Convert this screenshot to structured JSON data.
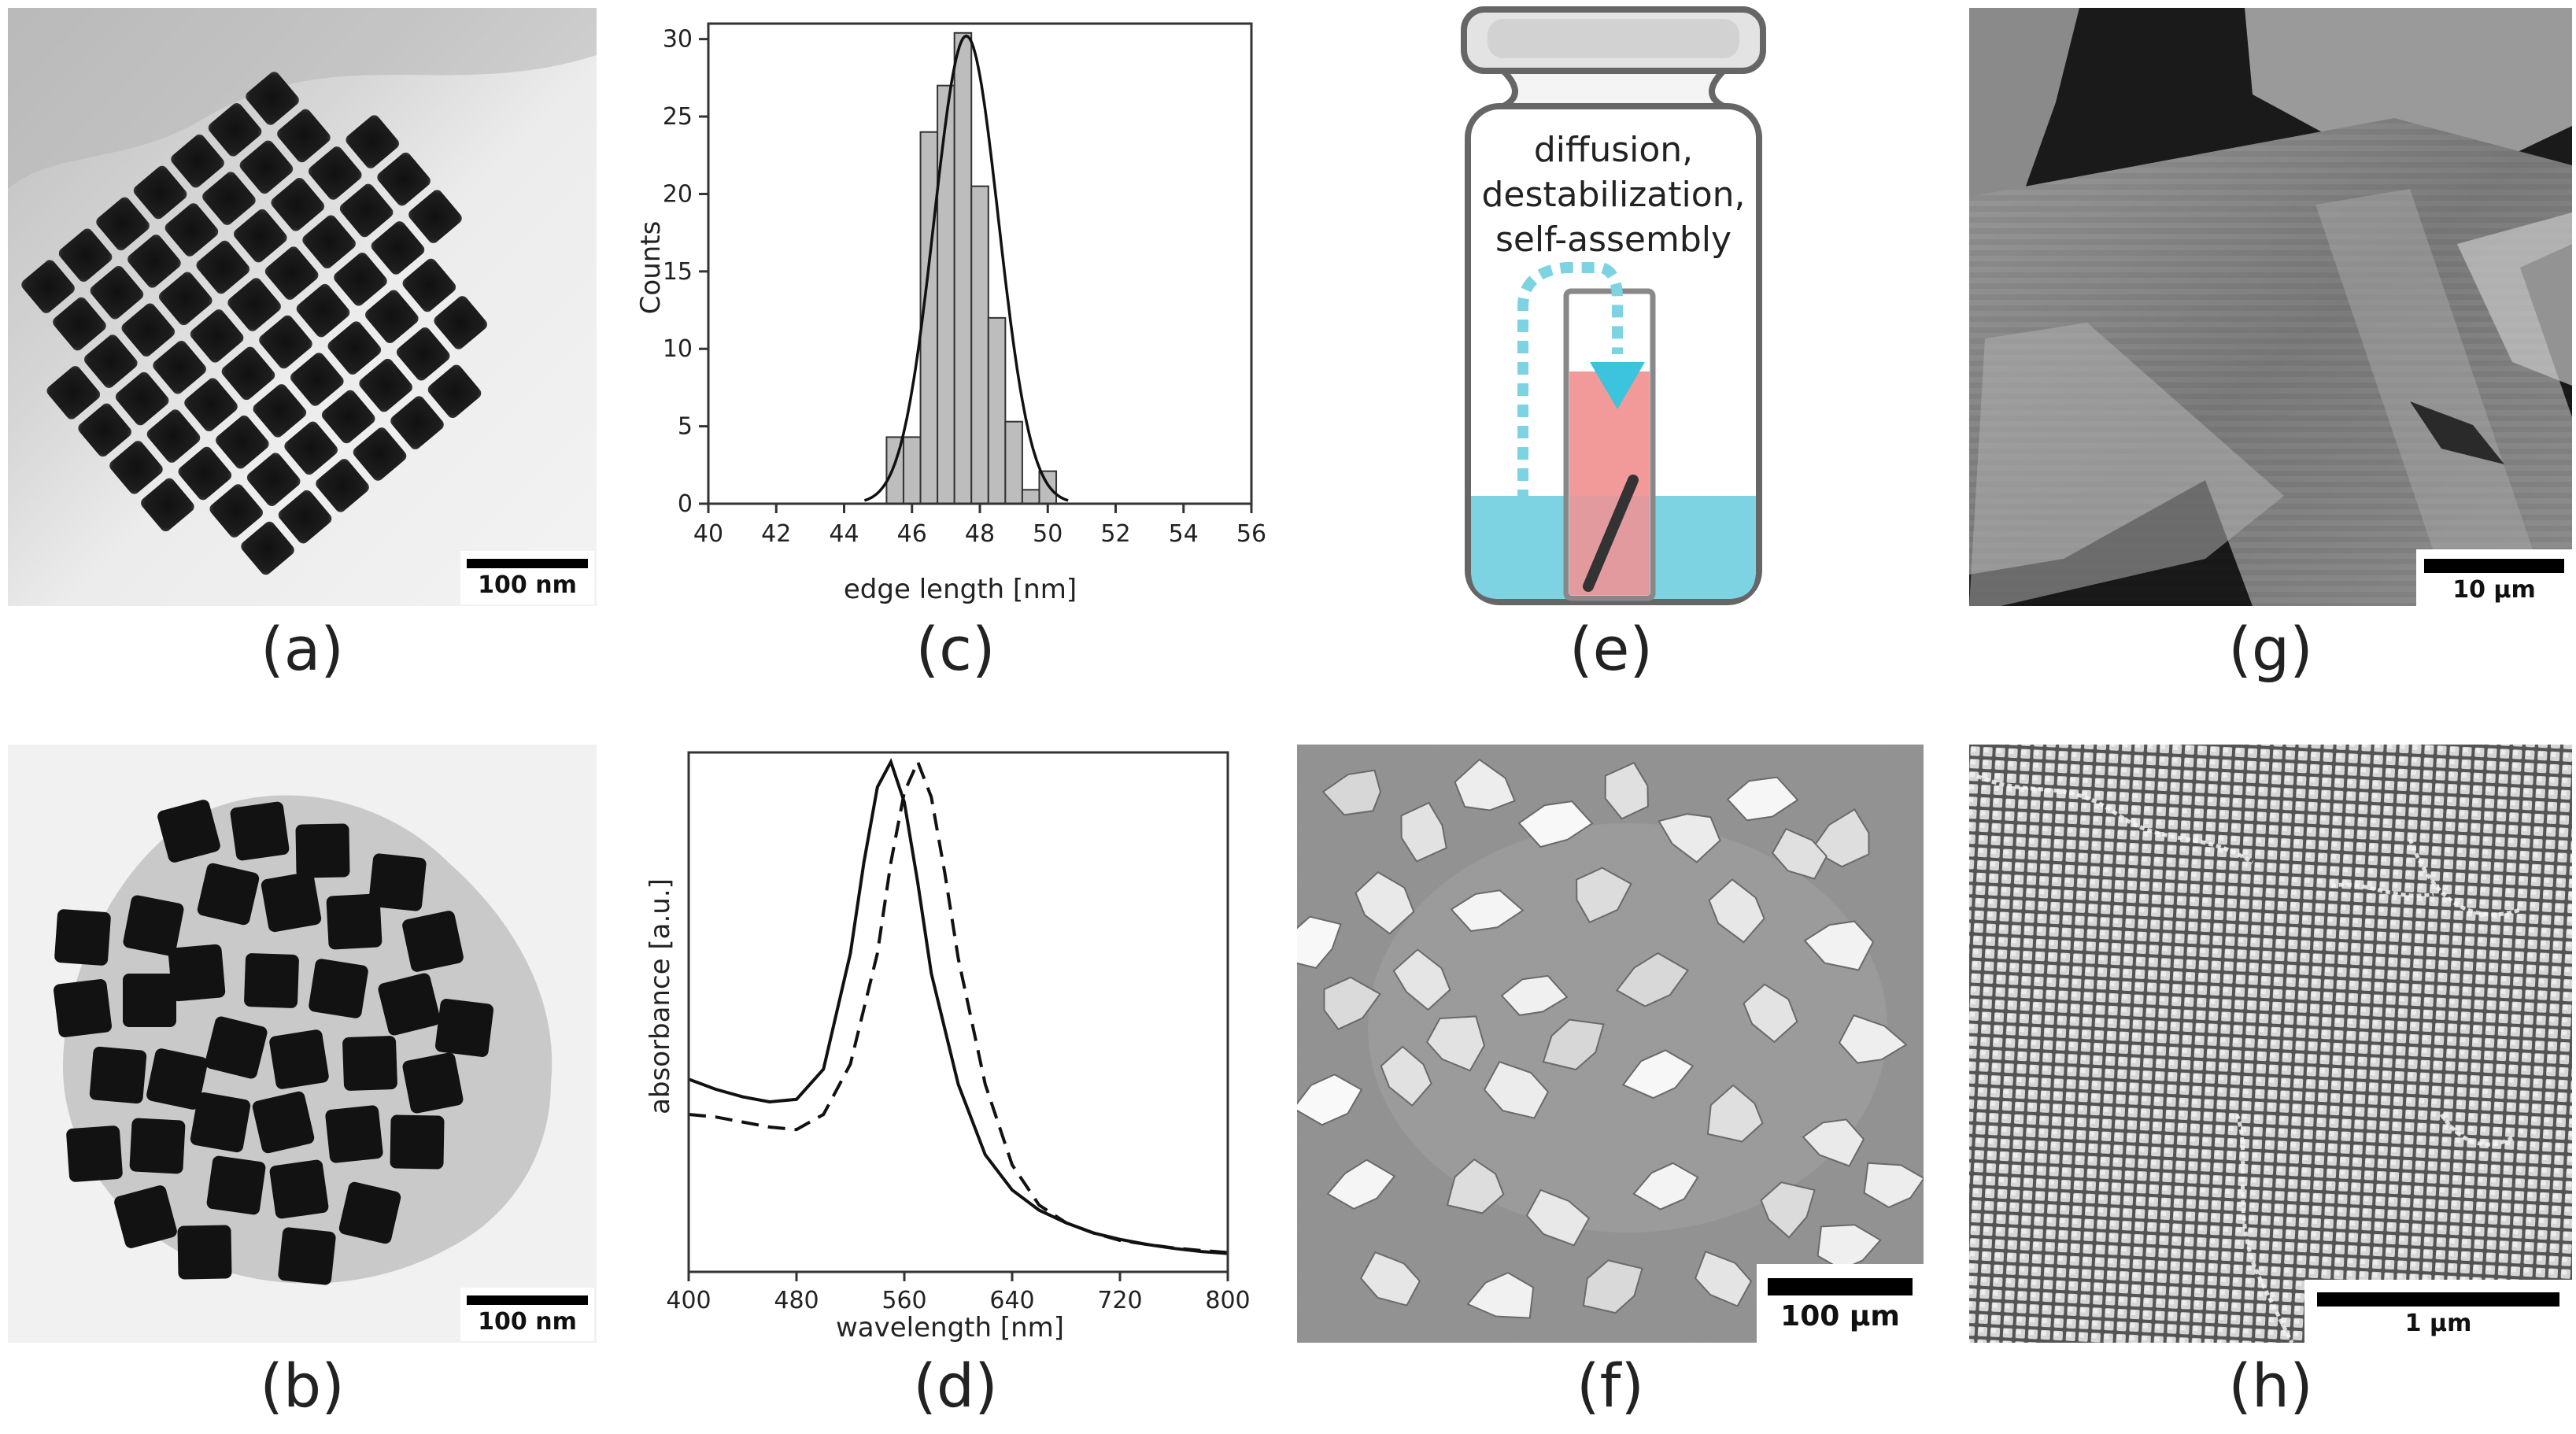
{
  "panels": {
    "a": {
      "caption": "(a)",
      "scale": "100 nm"
    },
    "b": {
      "caption": "(b)",
      "scale": "100 nm"
    },
    "c": {
      "caption": "(c)"
    },
    "d": {
      "caption": "(d)"
    },
    "e": {
      "caption": "(e)",
      "line1": "diffusion,",
      "line2": "destabilization,",
      "line3": "self-assembly"
    },
    "f": {
      "caption": "(f)",
      "scale": "100 µm"
    },
    "g": {
      "caption": "(g)",
      "scale": "10 µm"
    },
    "h": {
      "caption": "(h)",
      "scale": "1 µm"
    }
  },
  "chart_data": [
    {
      "type": "bar",
      "panel": "c",
      "xlabel": "edge length [nm]",
      "ylabel": "Counts",
      "xlim": [
        40,
        56
      ],
      "ylim": [
        0,
        31
      ],
      "xticks": [
        40,
        42,
        44,
        46,
        48,
        50,
        52,
        54,
        56
      ],
      "yticks": [
        0,
        5,
        10,
        15,
        20,
        25,
        30
      ],
      "bin_width": 0.5,
      "bins": [
        {
          "x": 45.5,
          "y": 4.3
        },
        {
          "x": 46.0,
          "y": 4.3
        },
        {
          "x": 46.5,
          "y": 24
        },
        {
          "x": 47.0,
          "y": 27
        },
        {
          "x": 47.5,
          "y": 30.4
        },
        {
          "x": 48.0,
          "y": 20.5
        },
        {
          "x": 48.5,
          "y": 12
        },
        {
          "x": 49.0,
          "y": 5.3
        },
        {
          "x": 49.5,
          "y": 0.9
        },
        {
          "x": 50.0,
          "y": 2.1
        }
      ],
      "fit": {
        "type": "gaussian",
        "mean": 47.6,
        "sigma": 0.95,
        "amplitude": 30.2
      }
    },
    {
      "type": "line",
      "panel": "d",
      "xlabel": "wavelength [nm]",
      "ylabel": "absorbance [a.u.]",
      "xlim": [
        400,
        800
      ],
      "xticks": [
        400,
        480,
        560,
        640,
        720,
        800
      ],
      "series": [
        {
          "style": "solid",
          "x": [
            400,
            420,
            440,
            460,
            480,
            500,
            520,
            530,
            540,
            550,
            560,
            570,
            580,
            600,
            620,
            640,
            660,
            680,
            700,
            720,
            740,
            760,
            780,
            800
          ],
          "y": [
            0.37,
            0.35,
            0.335,
            0.325,
            0.33,
            0.39,
            0.62,
            0.8,
            0.95,
            1.0,
            0.92,
            0.76,
            0.58,
            0.36,
            0.22,
            0.15,
            0.11,
            0.085,
            0.065,
            0.052,
            0.042,
            0.034,
            0.028,
            0.024
          ]
        },
        {
          "style": "dashed",
          "x": [
            400,
            420,
            440,
            460,
            480,
            500,
            520,
            540,
            550,
            560,
            570,
            580,
            590,
            600,
            620,
            640,
            660,
            680,
            700,
            720,
            740,
            760,
            780,
            800
          ],
          "y": [
            0.3,
            0.295,
            0.285,
            0.275,
            0.27,
            0.3,
            0.4,
            0.62,
            0.8,
            0.94,
            1.0,
            0.93,
            0.78,
            0.61,
            0.36,
            0.2,
            0.12,
            0.085,
            0.065,
            0.05,
            0.042,
            0.035,
            0.03,
            0.026
          ]
        }
      ]
    }
  ]
}
